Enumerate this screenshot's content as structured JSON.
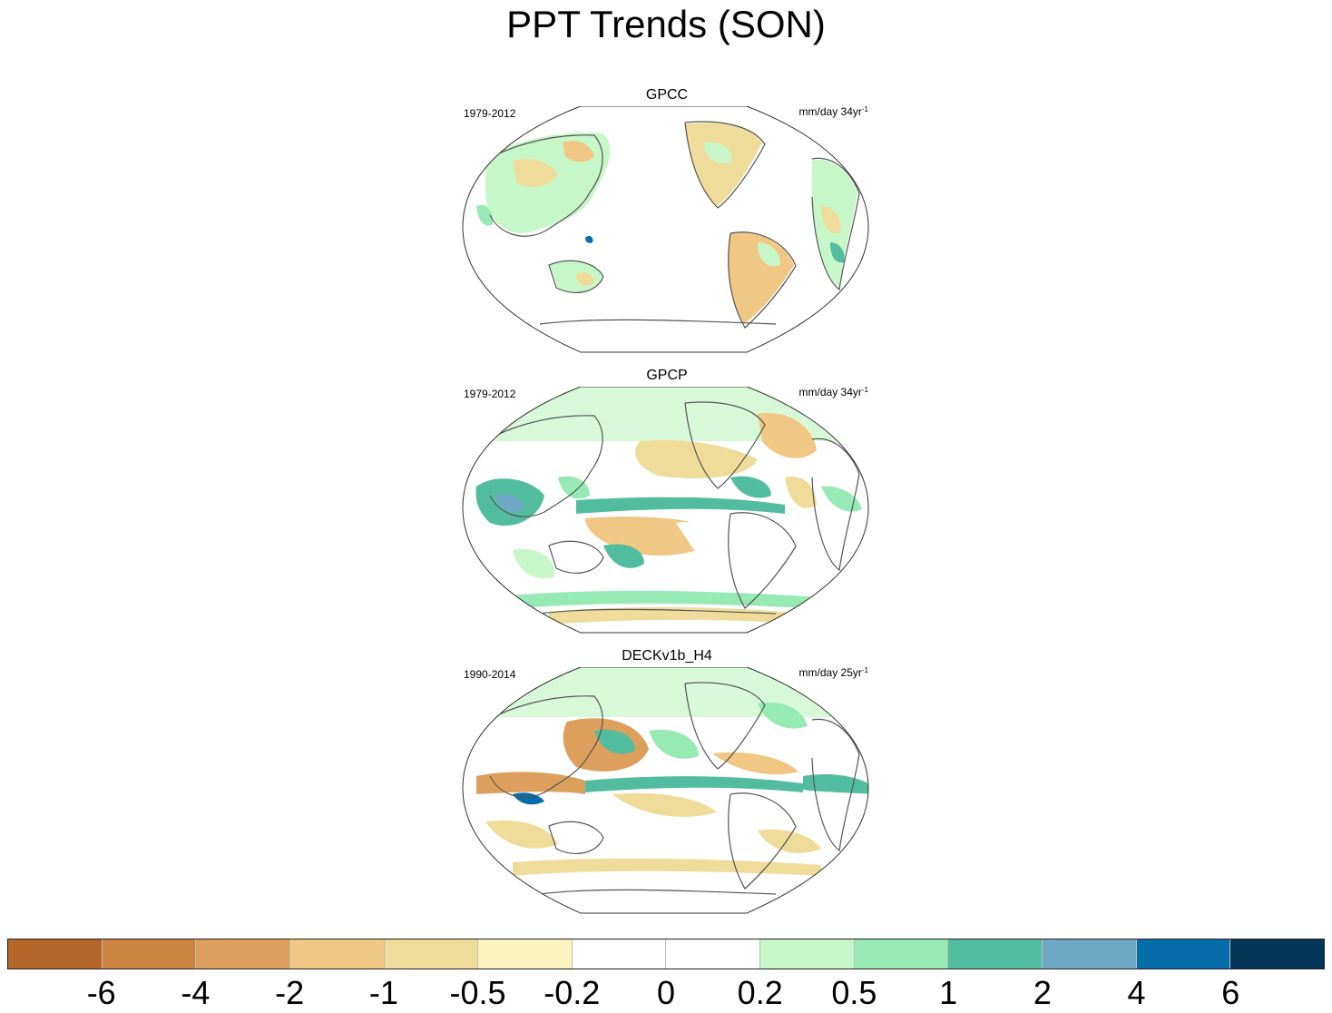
{
  "title": "PPT Trends (SON)",
  "panels": [
    {
      "name": "GPCC",
      "period": "1979-2012",
      "units": "mm/day 34yr",
      "units_sup": "-1"
    },
    {
      "name": "GPCP",
      "period": "1979-2012",
      "units": "mm/day 34yr",
      "units_sup": "-1"
    },
    {
      "name": "DECKv1b_H4",
      "period": "1990-2014",
      "units": "mm/day 25yr",
      "units_sup": "-1"
    }
  ],
  "colorbar": {
    "colors": [
      "#b5672a",
      "#cc8440",
      "#dca05c",
      "#f1c784",
      "#f0dc9a",
      "#fdf3bf",
      "#ffffff",
      "#ffffff",
      "#c7f7c8",
      "#97eab3",
      "#52bc9f",
      "#6fa8c7",
      "#066dab",
      "#04365a"
    ],
    "ticks": [
      "-6",
      "-4",
      "-2",
      "-1",
      "-0.5",
      "-0.2",
      "0",
      "0.2",
      "0.5",
      "1",
      "2",
      "4",
      "6"
    ]
  }
}
